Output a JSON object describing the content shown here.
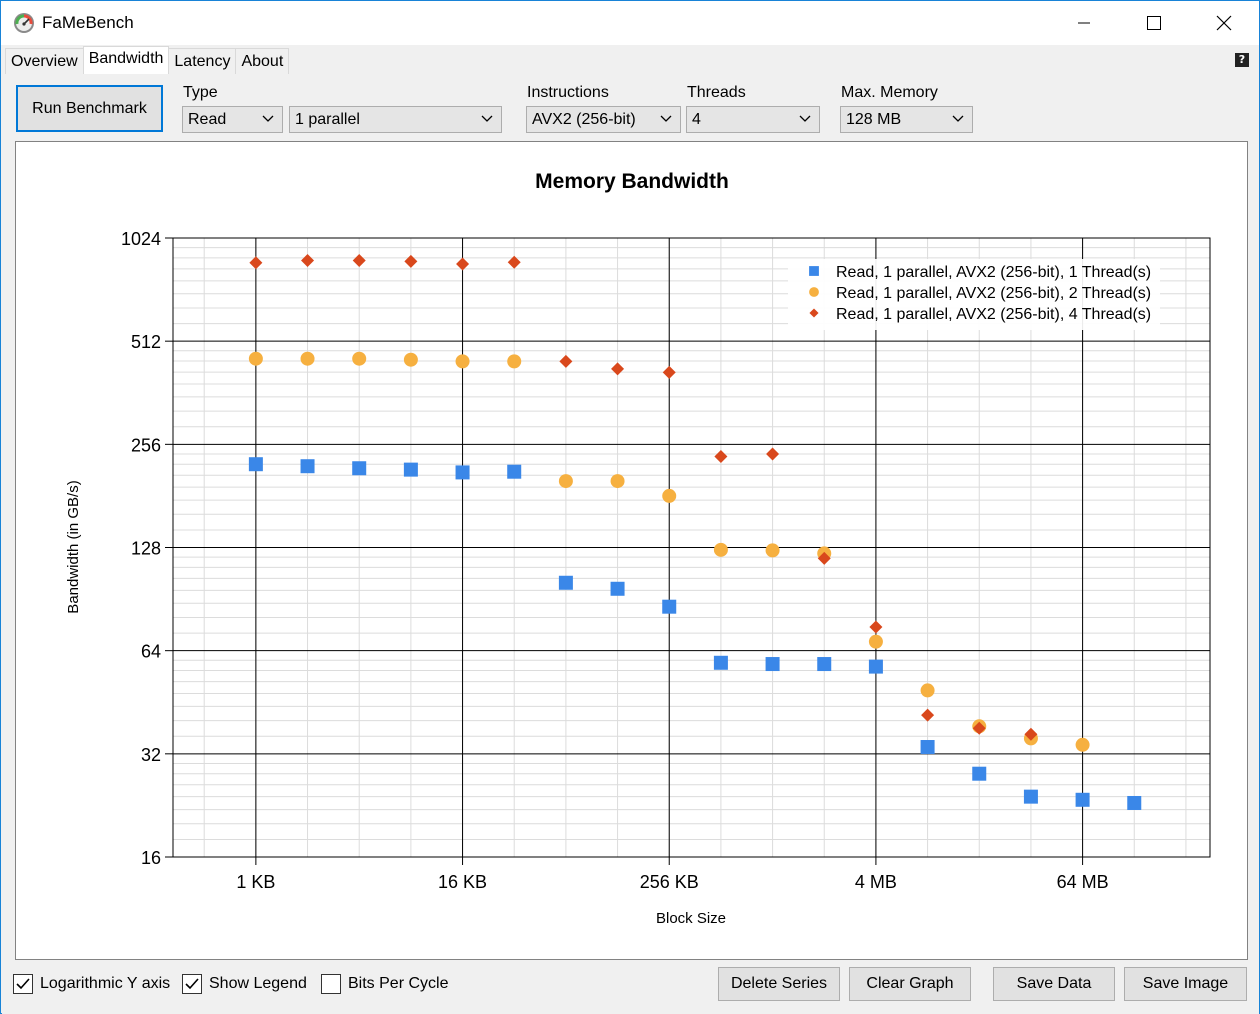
{
  "window": {
    "title": "FaMeBench"
  },
  "tabs": [
    {
      "label": "Overview"
    },
    {
      "label": "Bandwidth"
    },
    {
      "label": "Latency"
    },
    {
      "label": "About"
    }
  ],
  "help": "?",
  "toolbar": {
    "run_label": "Run Benchmark",
    "type_label": "Type",
    "type_value": "Read",
    "parallel_value": "1 parallel",
    "instructions_label": "Instructions",
    "instructions_value": "AVX2 (256-bit)",
    "threads_label": "Threads",
    "threads_value": "4",
    "maxmem_label": "Max. Memory",
    "maxmem_value": "128 MB"
  },
  "options": {
    "log_y": {
      "label": "Logarithmic Y axis",
      "checked": true
    },
    "show_legend": {
      "label": "Show Legend",
      "checked": true
    },
    "bits_per_cycle": {
      "label": "Bits Per Cycle",
      "checked": false
    }
  },
  "buttons": {
    "delete_series": "Delete Series",
    "clear_graph": "Clear Graph",
    "save_data": "Save Data",
    "save_image": "Save Image"
  },
  "chart_data": {
    "type": "scatter",
    "title": "Memory Bandwidth",
    "xlabel": "Block Size",
    "ylabel": "Bandwidth (in GB/s)",
    "y_scale": "log2",
    "ylim": [
      16,
      1024
    ],
    "y_ticks": [
      16,
      32,
      64,
      128,
      256,
      512,
      1024
    ],
    "y_tick_labels": [
      "16",
      "32",
      "64",
      "128",
      "256",
      "512",
      "1024"
    ],
    "x_scale": "log2",
    "x_unit": "KB",
    "x_ticks": [
      1,
      16,
      256,
      4096,
      65536
    ],
    "x_tick_labels": [
      "1 KB",
      "16 KB",
      "256 KB",
      "4 MB",
      "64 MB"
    ],
    "xlim": [
      0.329,
      362039
    ],
    "grid": true,
    "legend_position": "top-right",
    "series": [
      {
        "name": "Read, 1 parallel, AVX2 (256-bit), 1 Thread(s)",
        "color": "#3a87e8",
        "marker": "square",
        "x": [
          1,
          2,
          4,
          8,
          16,
          32,
          64,
          128,
          256,
          512,
          1024,
          2048,
          4096,
          8192,
          16384,
          32768,
          65536,
          131072
        ],
        "y": [
          224,
          221,
          218,
          216,
          212,
          213,
          101,
          97,
          86,
          59,
          58.5,
          58.5,
          57.5,
          33.5,
          28,
          24,
          23.5,
          23
        ]
      },
      {
        "name": "Read, 1 parallel, AVX2 (256-bit), 2 Thread(s)",
        "color": "#f6b040",
        "marker": "circle",
        "x": [
          1,
          2,
          4,
          8,
          16,
          32,
          64,
          128,
          256,
          512,
          1024,
          2048,
          4096,
          8192,
          16384,
          32768,
          65536
        ],
        "y": [
          455,
          455,
          455,
          452,
          447,
          447,
          200,
          200,
          181,
          126,
          125.5,
          123,
          68,
          49,
          38.5,
          35.5,
          34
        ]
      },
      {
        "name": "Read, 1 parallel, AVX2 (256-bit), 4 Thread(s)",
        "color": "#d9481c",
        "marker": "diamond",
        "x": [
          1,
          2,
          4,
          8,
          16,
          32,
          64,
          128,
          256,
          512,
          1024,
          2048,
          4096,
          8192,
          16384,
          32768
        ],
        "y": [
          867,
          880,
          880,
          875,
          860,
          870,
          447,
          425,
          415,
          236,
          240,
          119,
          75,
          41.5,
          38,
          36.5
        ]
      }
    ]
  }
}
